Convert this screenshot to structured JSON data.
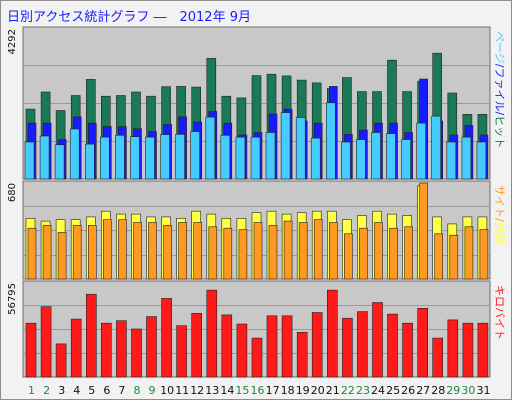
{
  "title": "日別アクセス統計グラフ ―　2012年 9月",
  "colors": {
    "page_top": "#1a7a55",
    "page_mid": "#1a1aff",
    "page_low": "#44ccff",
    "site": "#ffff44",
    "access": "#ff9922",
    "kilobyte": "#ff1a1a",
    "weekday_tick": "#111111",
    "weekend_tick": "#1a8a40"
  },
  "chart_data": {
    "type": "bar",
    "x": [
      1,
      2,
      3,
      4,
      5,
      6,
      7,
      8,
      9,
      10,
      11,
      12,
      13,
      14,
      15,
      16,
      17,
      18,
      19,
      20,
      21,
      22,
      23,
      24,
      25,
      26,
      27,
      28,
      29,
      30,
      31
    ],
    "x_tick_colors": [
      "weekend",
      "weekend",
      "weekday",
      "weekday",
      "weekday",
      "weekday",
      "weekday",
      "weekend",
      "weekend",
      "weekday",
      "weekday",
      "weekday",
      "weekday",
      "weekday",
      "weekend",
      "weekend",
      "weekday",
      "weekday",
      "weekday",
      "weekday",
      "weekday",
      "weekend",
      "weekend",
      "weekday",
      "weekday",
      "weekday",
      "weekday",
      "weekday",
      "weekend",
      "weekend",
      "weekday"
    ],
    "panels": [
      {
        "name": "pages",
        "ymax_label": "4292",
        "ymax": 4292,
        "right_label_parts": [
          {
            "text": "ページ",
            "color_key": "page_low"
          },
          {
            "text": "/",
            "color_key": "page_mid"
          },
          {
            "text": "ファイル",
            "color_key": "page_mid"
          },
          {
            "text": "/",
            "color_key": "page_mid"
          },
          {
            "text": "ヒット",
            "color_key": "page_top"
          }
        ],
        "series": [
          {
            "name": "ヒット",
            "color_key": "page_top",
            "values": [
              2000,
              2490,
              1960,
              2390,
              2850,
              2370,
              2390,
              2490,
              2370,
              2640,
              2650,
              2630,
              3450,
              2370,
              2320,
              2960,
              3000,
              2950,
              2830,
              2750,
              2590,
              2900,
              2500,
              2500,
              3400,
              2500,
              2800,
              3600,
              2460,
              1850,
              1850
            ]
          },
          {
            "name": "ファイル",
            "color_key": "page_mid",
            "values": [
              1600,
              1600,
              1130,
              1780,
              1600,
              1500,
              1500,
              1440,
              1360,
              1560,
              1780,
              1630,
              1930,
              1600,
              1260,
              1330,
              1860,
              2000,
              1660,
              1600,
              2650,
              1280,
              1400,
              1600,
              1600,
              1330,
              2860,
              1660,
              1260,
              1530,
              1260
            ]
          },
          {
            "name": "ページ",
            "color_key": "page_low",
            "values": [
              1060,
              1230,
              980,
              1430,
              1000,
              1200,
              1250,
              1210,
              1200,
              1270,
              1280,
              1360,
              1770,
              1250,
              1200,
              1200,
              1330,
              1900,
              1760,
              1170,
              2180,
              1060,
              1130,
              1330,
              1300,
              1130,
              1600,
              1800,
              1060,
              1200,
              1060
            ]
          }
        ]
      },
      {
        "name": "sites",
        "ymax_label": "680",
        "ymax": 680,
        "right_label_parts": [
          {
            "text": "サイト",
            "color_key": "access"
          },
          {
            "text": "/",
            "color_key": "access"
          },
          {
            "text": "訪問",
            "color_key": "site"
          }
        ],
        "series": [
          {
            "name": "訪問",
            "color_key": "site",
            "values": [
              430,
              410,
              420,
              420,
              440,
              480,
              460,
              460,
              440,
              440,
              430,
              480,
              460,
              430,
              430,
              470,
              480,
              460,
              470,
              480,
              480,
              420,
              450,
              480,
              460,
              450,
              660,
              440,
              390,
              440,
              440
            ]
          },
          {
            "name": "サイト",
            "color_key": "access",
            "values": [
              360,
              380,
              330,
              380,
              380,
              420,
              420,
              400,
              400,
              380,
              400,
              400,
              370,
              360,
              350,
              400,
              380,
              410,
              400,
              420,
              400,
              320,
              360,
              400,
              360,
              370,
              680,
              320,
              310,
              370,
              350
            ]
          }
        ]
      },
      {
        "name": "kilobytes",
        "ymax_label": "56795",
        "ymax": 56795,
        "right_label_parts": [
          {
            "text": "キロバイト",
            "color_key": "kilobyte"
          }
        ],
        "series": [
          {
            "name": "キロバイト",
            "color_key": "kilobyte",
            "values": [
              32500,
              42500,
              20000,
              35000,
              50000,
              32500,
              34000,
              29000,
              36500,
              47500,
              31000,
              38500,
              52500,
              37500,
              32000,
              23500,
              37000,
              37000,
              27000,
              39000,
              52500,
              35500,
              39500,
              45000,
              38000,
              32500,
              41500,
              23500,
              34500,
              32500,
              32500
            ]
          }
        ]
      }
    ]
  }
}
